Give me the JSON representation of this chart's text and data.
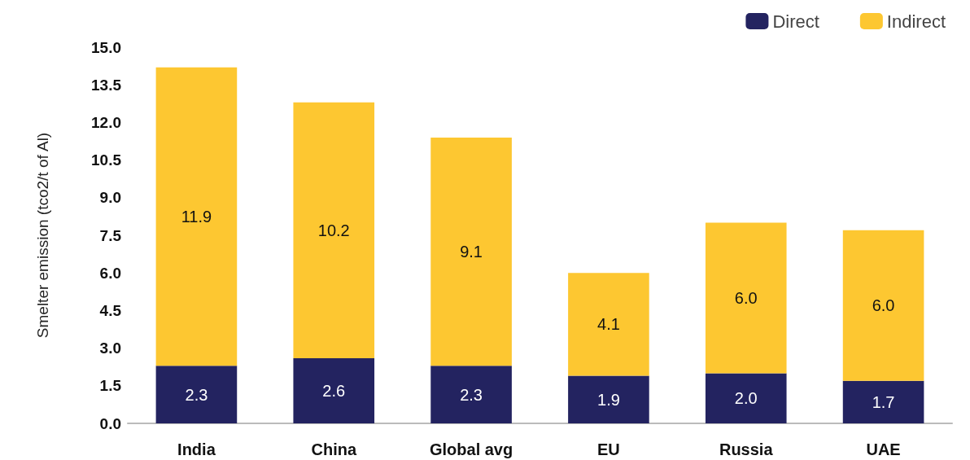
{
  "chart_data": {
    "type": "bar",
    "stacked": true,
    "ylabel": "Smelter emission (tco2/t of Al)",
    "categories": [
      "India",
      "China",
      "Global avg",
      "EU",
      "Russia",
      "UAE"
    ],
    "series": [
      {
        "name": "Direct",
        "color": "#232360",
        "values": [
          2.3,
          2.6,
          2.3,
          1.9,
          2.0,
          1.7
        ],
        "value_labels": [
          "2.3",
          "2.6",
          "2.3",
          "1.9",
          "2.0",
          "1.7"
        ]
      },
      {
        "name": "Indirect",
        "color": "#fdc731",
        "values": [
          11.9,
          10.2,
          9.1,
          4.1,
          6.0,
          6.0
        ],
        "value_labels": [
          "11.9",
          "10.2",
          "9.1",
          "4.1",
          "6.0",
          "6.0"
        ]
      }
    ],
    "ylim": [
      0,
      15
    ],
    "yticks": [
      {
        "value": 0,
        "label": "0.0"
      },
      {
        "value": 1.5,
        "label": "1.5"
      },
      {
        "value": 3,
        "label": "3.0"
      },
      {
        "value": 4.5,
        "label": "4.5"
      },
      {
        "value": 6,
        "label": "6.0"
      },
      {
        "value": 7.5,
        "label": "7.5"
      },
      {
        "value": 9,
        "label": "9.0"
      },
      {
        "value": 10.5,
        "label": "10.5"
      },
      {
        "value": 12,
        "label": "12.0"
      },
      {
        "value": 13.5,
        "label": "13.5"
      },
      {
        "value": 15,
        "label": "15.0"
      }
    ],
    "grid": false,
    "legend": "top right"
  }
}
